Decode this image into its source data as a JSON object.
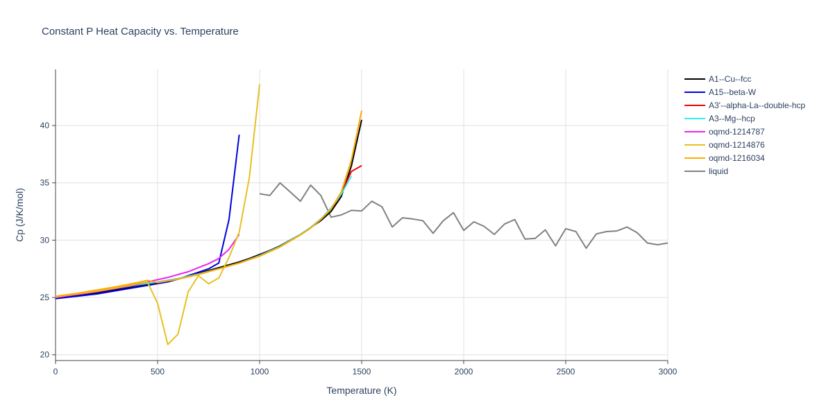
{
  "chart_data": {
    "type": "line",
    "title": "Constant P Heat Capacity vs. Temperature",
    "xlabel": "Temperature (K)",
    "ylabel": "Cp (J/K/mol)",
    "xlim": [
      0,
      3000
    ],
    "ylim": [
      19.5,
      44.9
    ],
    "x_ticks": [
      0,
      500,
      1000,
      1500,
      2000,
      2500,
      3000
    ],
    "y_ticks": [
      20,
      25,
      30,
      35,
      40
    ],
    "grid": true,
    "legend_position": "top-right",
    "series": [
      {
        "name": "A1--Cu--fcc",
        "color": "#000000",
        "x": [
          0,
          100,
          200,
          300,
          400,
          500,
          550,
          600,
          650,
          700,
          750,
          800,
          850,
          900,
          950,
          1000,
          1050,
          1100,
          1150,
          1200,
          1250,
          1300,
          1350,
          1400,
          1450,
          1500
        ],
        "y": [
          25.0,
          25.2,
          25.4,
          25.7,
          26.0,
          26.3,
          26.4,
          26.6,
          26.85,
          27.1,
          27.35,
          27.6,
          27.85,
          28.1,
          28.4,
          28.75,
          29.1,
          29.5,
          30.0,
          30.5,
          31.1,
          31.7,
          32.5,
          33.8,
          36.5,
          40.5
        ]
      },
      {
        "name": "A15--beta-W",
        "color": "#0000dd",
        "x": [
          0,
          100,
          200,
          300,
          400,
          500,
          550,
          600,
          650,
          700,
          750,
          800,
          850,
          900
        ],
        "y": [
          24.9,
          25.1,
          25.3,
          25.6,
          25.9,
          26.2,
          26.35,
          26.6,
          26.9,
          27.2,
          27.5,
          28.0,
          31.8,
          39.2
        ]
      },
      {
        "name": "A3'--alpha-La--double-hcp",
        "color": "#ee0000",
        "x": [
          0,
          100,
          200,
          300,
          400,
          500,
          600,
          700,
          800,
          900,
          1000,
          1100,
          1200,
          1250,
          1300,
          1350,
          1400,
          1450,
          1500
        ],
        "y": [
          25.05,
          25.25,
          25.5,
          25.8,
          26.1,
          26.35,
          26.65,
          27.05,
          27.5,
          28.0,
          28.65,
          29.45,
          30.5,
          31.1,
          31.85,
          32.7,
          34.1,
          36.0,
          36.5
        ]
      },
      {
        "name": "A3--Mg--hcp",
        "color": "#33eeee",
        "x": [
          0,
          100,
          200,
          300,
          400,
          500,
          600,
          700,
          800,
          900,
          1000,
          1100,
          1200,
          1250,
          1300,
          1350,
          1400,
          1450
        ],
        "y": [
          25.05,
          25.25,
          25.5,
          25.8,
          26.1,
          26.35,
          26.65,
          27.05,
          27.5,
          28.0,
          28.65,
          29.45,
          30.5,
          31.1,
          31.85,
          32.8,
          34.0,
          35.6
        ]
      },
      {
        "name": "oqmd-1214787",
        "color": "#ee22ee",
        "x": [
          0,
          100,
          200,
          300,
          400,
          450,
          500,
          550,
          600,
          650,
          700,
          750,
          800,
          850,
          900
        ],
        "y": [
          25.0,
          25.25,
          25.5,
          25.8,
          26.15,
          26.35,
          26.55,
          26.75,
          27.0,
          27.25,
          27.6,
          27.95,
          28.4,
          29.2,
          30.5
        ]
      },
      {
        "name": "oqmd-1214876",
        "color": "#e6c022",
        "x": [
          0,
          100,
          200,
          300,
          400,
          450,
          500,
          550,
          600,
          650,
          700,
          750,
          800,
          850,
          900,
          950,
          1000
        ],
        "y": [
          25.05,
          25.3,
          25.55,
          25.85,
          26.2,
          26.35,
          24.5,
          20.9,
          21.8,
          25.5,
          26.9,
          26.2,
          26.7,
          28.5,
          30.7,
          35.5,
          43.6
        ]
      },
      {
        "name": "oqmd-1216034",
        "color": "#ffaa00",
        "x": [
          0,
          100,
          200,
          300,
          400,
          450,
          500,
          600,
          700,
          800,
          900,
          1000,
          1100,
          1200,
          1250,
          1300,
          1350,
          1400,
          1450,
          1500
        ],
        "y": [
          25.1,
          25.35,
          25.65,
          25.95,
          26.3,
          26.5,
          26.3,
          26.6,
          27.0,
          27.5,
          28.0,
          28.6,
          29.4,
          30.45,
          31.05,
          31.8,
          32.7,
          34.2,
          37.0,
          41.3
        ]
      },
      {
        "name": "liquid",
        "color": "#808080",
        "x": [
          1000,
          1050,
          1100,
          1150,
          1200,
          1250,
          1300,
          1350,
          1400,
          1450,
          1500,
          1550,
          1600,
          1650,
          1700,
          1750,
          1800,
          1850,
          1900,
          1950,
          2000,
          2050,
          2100,
          2150,
          2200,
          2250,
          2300,
          2350,
          2400,
          2450,
          2500,
          2550,
          2600,
          2650,
          2700,
          2750,
          2800,
          2850,
          2900,
          2950,
          3000
        ],
        "y": [
          34.05,
          33.9,
          35.0,
          34.2,
          33.4,
          34.8,
          33.9,
          32.0,
          32.2,
          32.6,
          32.55,
          33.4,
          32.9,
          31.15,
          31.95,
          31.85,
          31.7,
          30.6,
          31.7,
          32.4,
          30.85,
          31.6,
          31.2,
          30.5,
          31.4,
          31.8,
          30.1,
          30.15,
          30.9,
          29.5,
          31.0,
          30.75,
          29.3,
          30.55,
          30.75,
          30.8,
          31.15,
          30.65,
          29.75,
          29.6,
          29.75
        ]
      }
    ]
  }
}
